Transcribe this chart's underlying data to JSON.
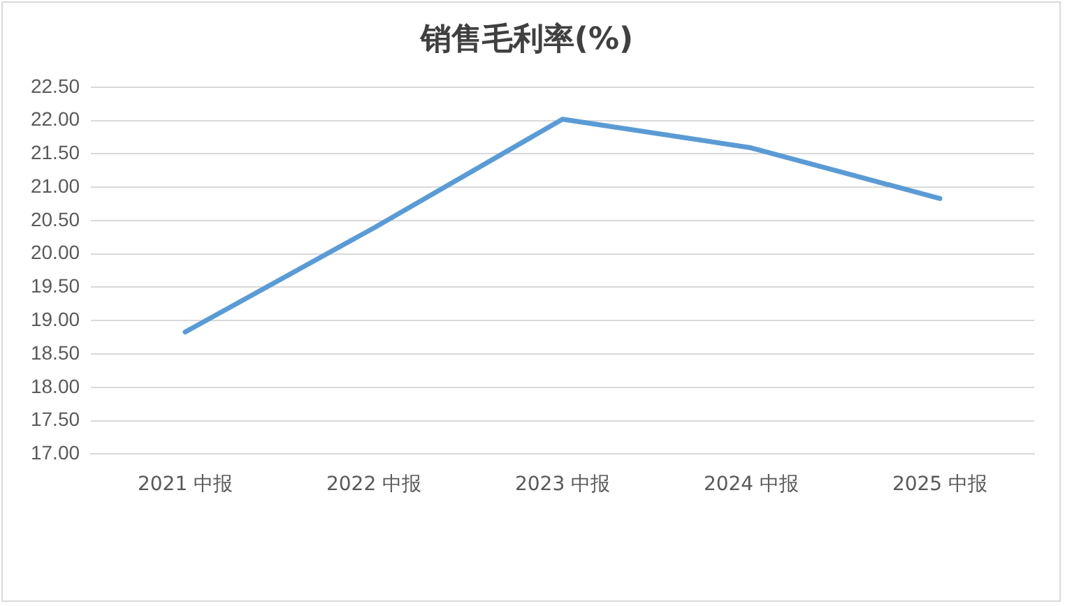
{
  "chart_data": {
    "type": "line",
    "title": "销售毛利率(%)",
    "categories": [
      "2021 中报",
      "2022 中报",
      "2023 中报",
      "2024 中报",
      "2025 中报"
    ],
    "series": [
      {
        "color": "#5b9bd5",
        "values": [
          18.83,
          20.39,
          22.02,
          21.59,
          20.83
        ]
      }
    ],
    "ylim": [
      17,
      22.5
    ],
    "yticks": [
      {
        "value": 17,
        "label": "17.00"
      },
      {
        "value": 17.5,
        "label": "17.50"
      },
      {
        "value": 18,
        "label": "18.00"
      },
      {
        "value": 18.5,
        "label": "18.50"
      },
      {
        "value": 19,
        "label": "19.00"
      },
      {
        "value": 19.5,
        "label": "19.50"
      },
      {
        "value": 20,
        "label": "20.00"
      },
      {
        "value": 20.5,
        "label": "20.50"
      },
      {
        "value": 21,
        "label": "21.00"
      },
      {
        "value": 21.5,
        "label": "21.50"
      },
      {
        "value": 22,
        "label": "22.00"
      },
      {
        "value": 22.5,
        "label": "22.50"
      }
    ],
    "grid": "y",
    "legend": false,
    "marker": "none",
    "line_style": "solid"
  }
}
